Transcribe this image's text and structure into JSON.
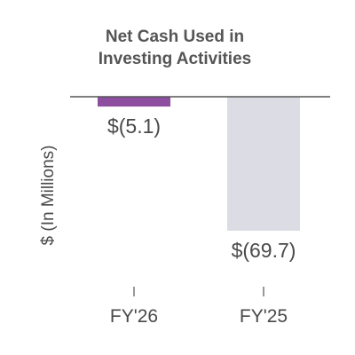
{
  "chart_data": {
    "type": "bar",
    "title_lines": [
      "Net Cash Used in",
      "Investing Activities"
    ],
    "xlabel": "",
    "ylabel": "$ (In Millions)",
    "categories": [
      "FY'26",
      "FY'25"
    ],
    "values": [
      -5.1,
      -69.7
    ],
    "value_labels": [
      "$(5.1)",
      "$(69.7)"
    ],
    "colors": [
      "#8e4ea0",
      "#dcdce4"
    ],
    "ylim": [
      -69.7,
      0
    ],
    "grid": false,
    "legend": "none"
  }
}
